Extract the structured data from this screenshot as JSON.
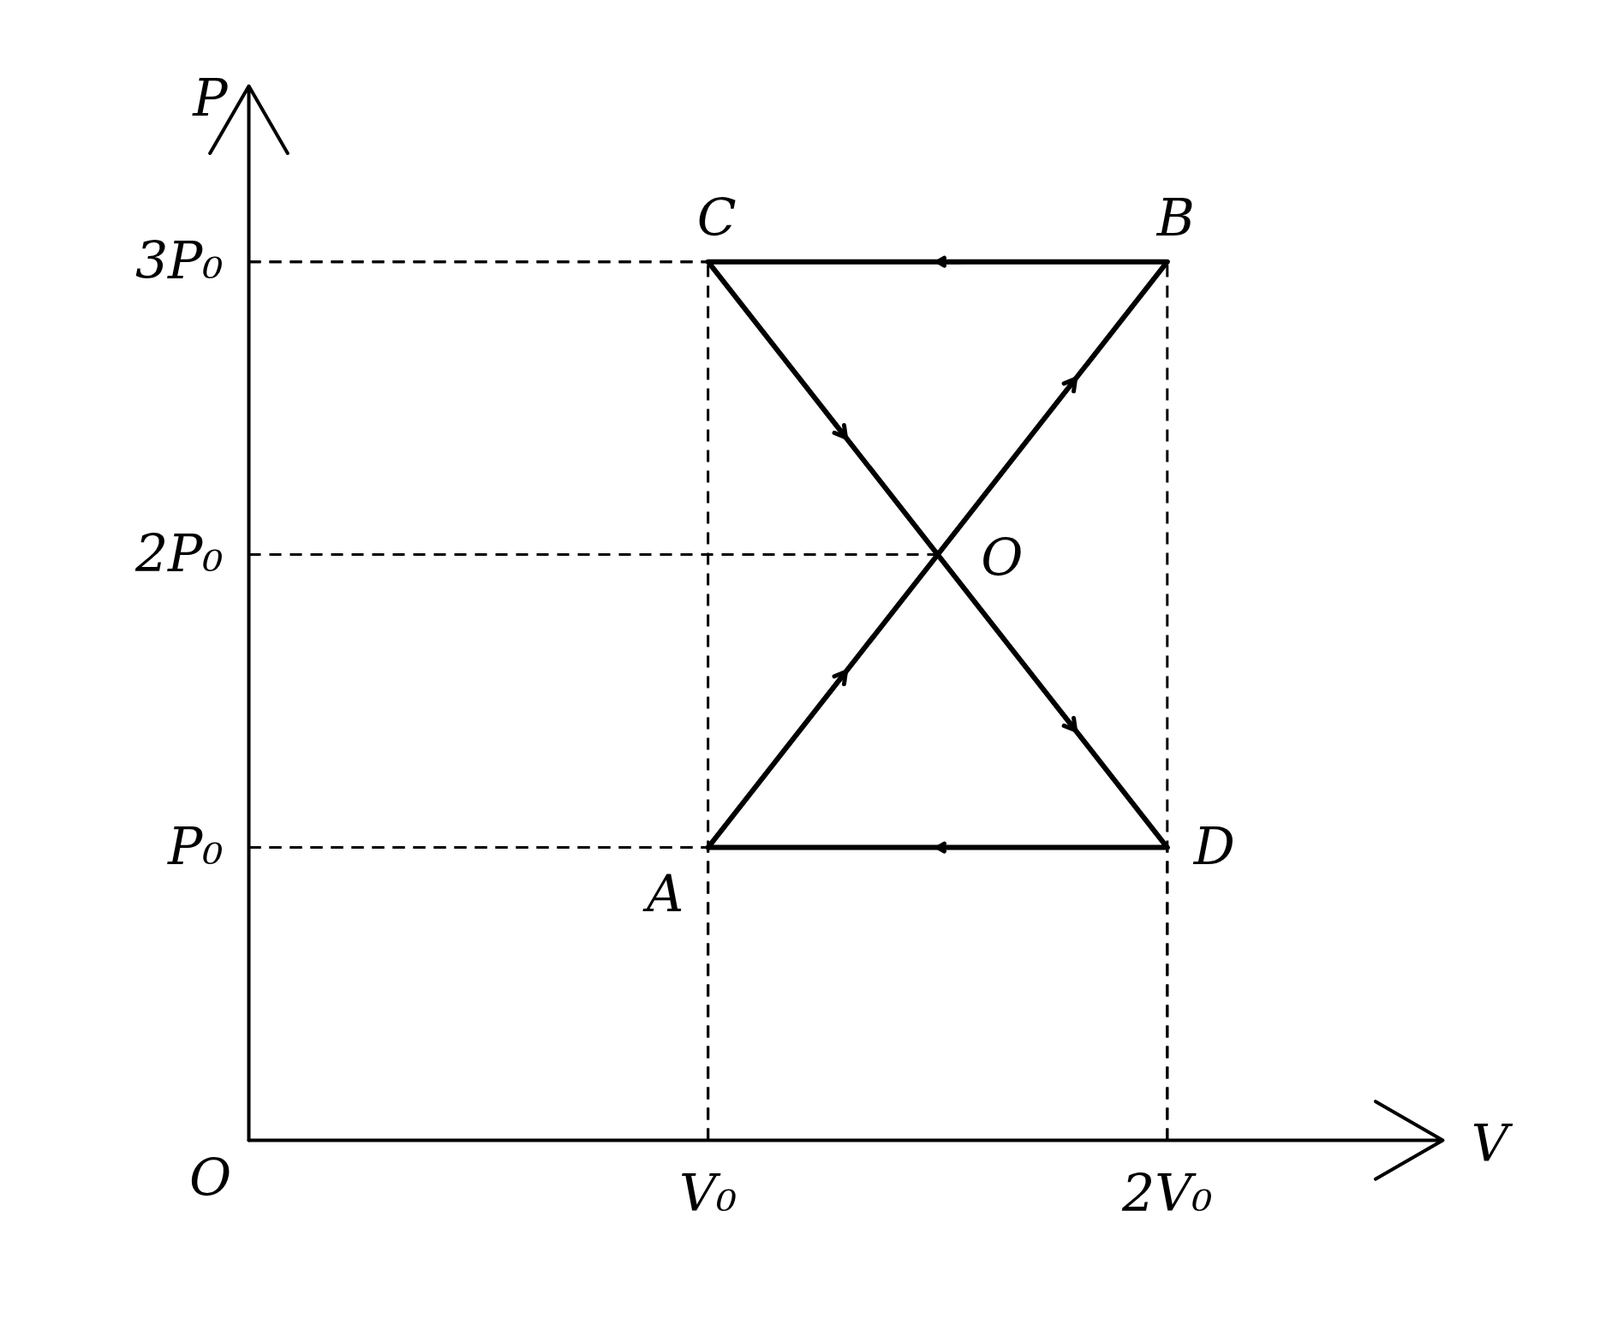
{
  "chart_data": {
    "type": "line",
    "x_label": "V",
    "y_label": "P",
    "origin_label": "O",
    "xlim": [
      0,
      2.6
    ],
    "ylim": [
      0,
      3.6
    ],
    "xticks": [
      {
        "value": 1,
        "label": "V₀"
      },
      {
        "value": 2,
        "label": "2V₀"
      }
    ],
    "yticks": [
      {
        "value": 1,
        "label": "P₀"
      },
      {
        "value": 2,
        "label": "2P₀"
      },
      {
        "value": 3,
        "label": "3P₀"
      }
    ],
    "points": [
      {
        "label": "A",
        "x": 1,
        "y": 1
      },
      {
        "label": "B",
        "x": 2,
        "y": 3
      },
      {
        "label": "C",
        "x": 1,
        "y": 3
      },
      {
        "label": "D",
        "x": 2,
        "y": 1
      }
    ],
    "path": [
      "A",
      "B",
      "C",
      "D",
      "A"
    ],
    "annotations": [
      {
        "text": "O",
        "x": 1.5,
        "y": 2
      }
    ],
    "color": "#000000",
    "line_style": "solid",
    "grid": false
  }
}
